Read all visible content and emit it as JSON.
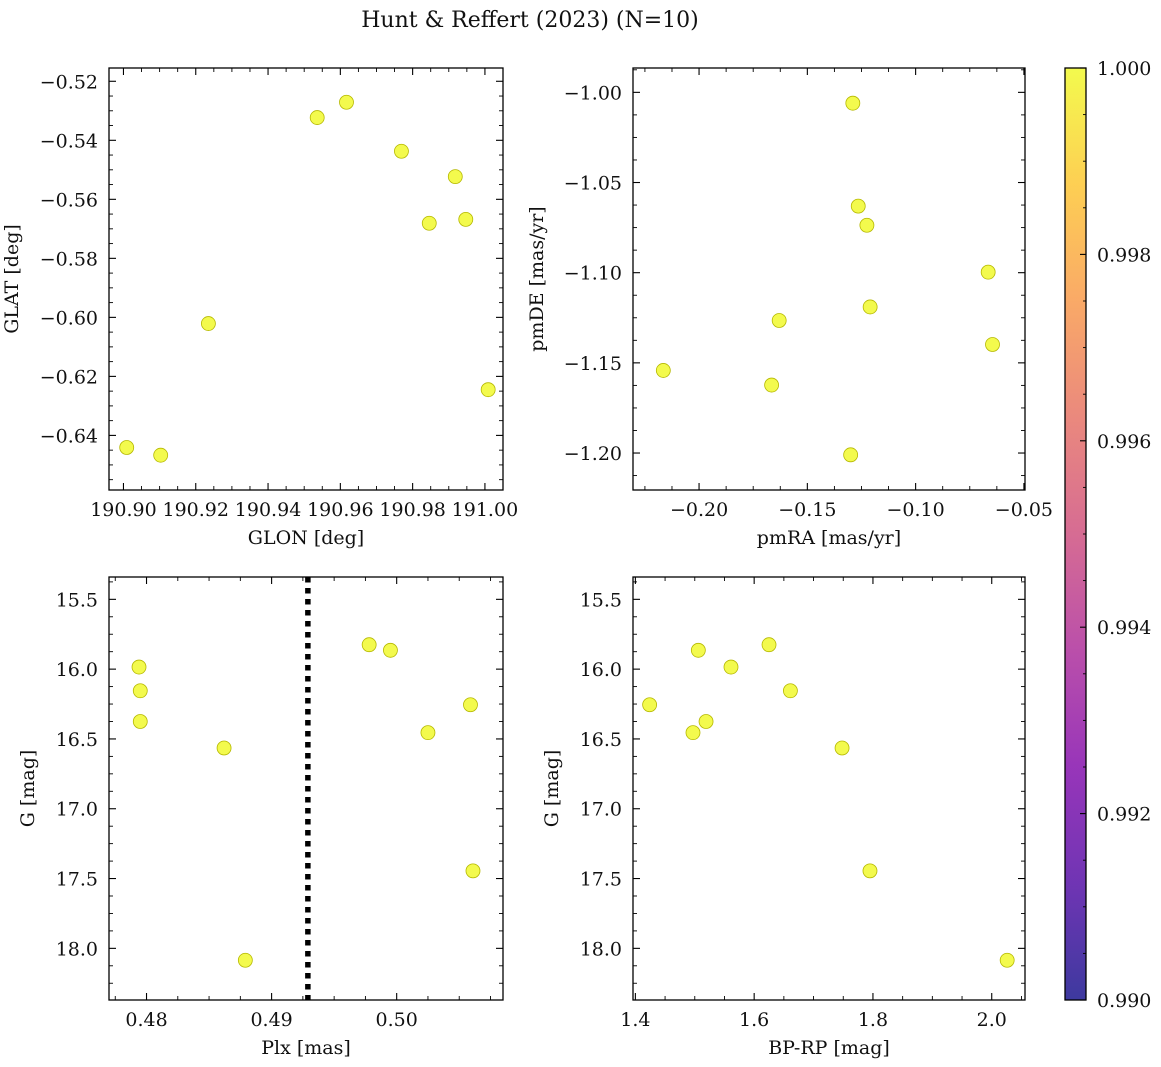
{
  "figure": {
    "title": "Hunt & Reffert (2023) (N=10)"
  },
  "colorbar": {
    "colormap": "plasma",
    "vmin": 0.99,
    "vmax": 1.0,
    "ticks": [
      "1.000",
      "0.998",
      "0.996",
      "0.994",
      "0.992",
      "0.990"
    ],
    "tick_values": [
      1.0,
      0.998,
      0.996,
      0.994,
      0.992,
      0.99
    ]
  },
  "chart_data": [
    {
      "type": "scatter",
      "panel": "top-left",
      "xlabel": "GLON [deg]",
      "ylabel": "GLAT [deg]",
      "xlim": [
        190.896,
        191.005
      ],
      "ylim": [
        -0.6585,
        -0.5155
      ],
      "invert_y": false,
      "xticks": [
        190.9,
        190.92,
        190.94,
        190.96,
        190.98,
        191.0
      ],
      "xtick_labels": [
        "190.90",
        "190.92",
        "190.94",
        "190.96",
        "190.98",
        "191.00"
      ],
      "yticks": [
        -0.64,
        -0.62,
        -0.6,
        -0.58,
        -0.56,
        -0.54,
        -0.52
      ],
      "ytick_labels": [
        "−0.64",
        "−0.62",
        "−0.60",
        "−0.58",
        "−0.56",
        "−0.54",
        "−0.52"
      ],
      "x": [
        190.9009,
        190.9103,
        190.9235,
        190.9536,
        190.9617,
        190.9769,
        190.9846,
        190.9918,
        190.9947,
        191.0009
      ],
      "y": [
        -0.6441,
        -0.6467,
        -0.6021,
        -0.5323,
        -0.5271,
        -0.5437,
        -0.5681,
        -0.5523,
        -0.5668,
        -0.6245
      ],
      "color_values": [
        1,
        1,
        1,
        1,
        1,
        1,
        1,
        1,
        1,
        1
      ]
    },
    {
      "type": "scatter",
      "panel": "top-right",
      "xlabel": "pmRA [mas/yr]",
      "ylabel": "pmDE [mas/yr]",
      "xlim": [
        -0.2305,
        -0.0495
      ],
      "ylim": [
        -1.2205,
        -0.9865
      ],
      "invert_y": false,
      "xticks": [
        -0.2,
        -0.15,
        -0.1,
        -0.05
      ],
      "xtick_labels": [
        "−0.20",
        "−0.15",
        "−0.10",
        "−0.05"
      ],
      "yticks": [
        -1.2,
        -1.15,
        -1.1,
        -1.05,
        -1.0
      ],
      "ytick_labels": [
        "−1.20",
        "−1.15",
        "−1.10",
        "−1.05",
        "−1.00"
      ],
      "x": [
        -0.2165,
        -0.1665,
        -0.163,
        -0.13,
        -0.129,
        -0.1265,
        -0.1225,
        -0.121,
        -0.0665,
        -0.0645
      ],
      "y": [
        -1.1542,
        -1.1623,
        -1.1265,
        -1.201,
        -1.006,
        -1.0631,
        -1.0737,
        -1.119,
        -1.0997,
        -1.1398
      ],
      "color_values": [
        1,
        1,
        1,
        1,
        1,
        1,
        1,
        1,
        1,
        1
      ]
    },
    {
      "type": "scatter",
      "panel": "bottom-left",
      "xlabel": "Plx [mas]",
      "ylabel": "G [mag]",
      "xlim": [
        0.477,
        0.5085
      ],
      "ylim": [
        15.34,
        18.37
      ],
      "invert_y": true,
      "xticks": [
        0.48,
        0.49,
        0.5
      ],
      "xtick_labels": [
        "0.48",
        "0.49",
        "0.50"
      ],
      "yticks": [
        15.5,
        16.0,
        16.5,
        17.0,
        17.5,
        18.0
      ],
      "ytick_labels": [
        "15.5",
        "16.0",
        "16.5",
        "17.0",
        "17.5",
        "18.0"
      ],
      "x": [
        0.4794,
        0.4795,
        0.4795,
        0.4862,
        0.4879,
        0.4978,
        0.4995,
        0.5025,
        0.5059,
        0.5061
      ],
      "y": [
        15.985,
        16.155,
        16.375,
        16.565,
        18.085,
        15.825,
        15.865,
        16.455,
        16.255,
        17.445
      ],
      "color_values": [
        1,
        1,
        1,
        1,
        1,
        1,
        1,
        1,
        1,
        1
      ],
      "reference_line": {
        "orientation": "vertical",
        "x": 0.4929,
        "style": "dotted",
        "color": "#000000"
      }
    },
    {
      "type": "scatter",
      "panel": "bottom-right",
      "xlabel": "BP-RP [mag]",
      "ylabel": "G [mag]",
      "xlim": [
        1.396,
        2.056
      ],
      "ylim": [
        15.34,
        18.37
      ],
      "invert_y": true,
      "xticks": [
        1.4,
        1.6,
        1.8,
        2.0
      ],
      "xtick_labels": [
        "1.4",
        "1.6",
        "1.8",
        "2.0"
      ],
      "yticks": [
        15.5,
        16.0,
        16.5,
        17.0,
        17.5,
        18.0
      ],
      "ytick_labels": [
        "15.5",
        "16.0",
        "16.5",
        "17.0",
        "17.5",
        "18.0"
      ],
      "x": [
        1.424,
        1.497,
        1.506,
        1.519,
        1.561,
        1.625,
        1.661,
        1.748,
        1.795,
        2.026
      ],
      "y": [
        16.255,
        16.455,
        15.865,
        16.375,
        15.985,
        15.825,
        16.155,
        16.565,
        17.445,
        18.085
      ],
      "color_values": [
        1,
        1,
        1,
        1,
        1,
        1,
        1,
        1,
        1,
        1
      ]
    }
  ]
}
